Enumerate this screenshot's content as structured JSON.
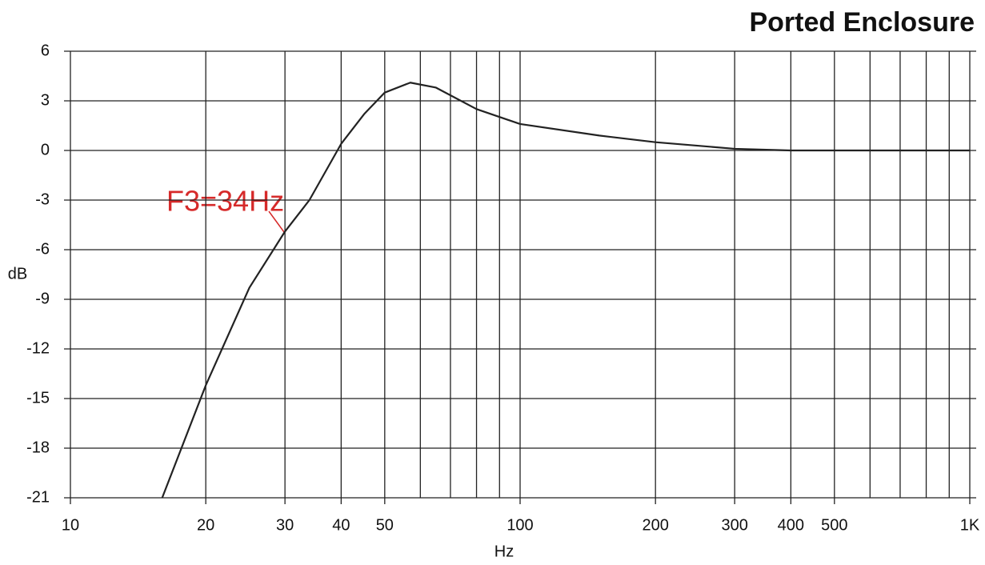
{
  "chart_data": {
    "type": "line",
    "title": "Ported Enclosure",
    "x_label": "Hz",
    "y_label": "dB",
    "x_scale": "log",
    "xlim": [
      10,
      1000
    ],
    "ylim": [
      -21,
      6
    ],
    "xticks": [
      10,
      20,
      30,
      40,
      50,
      100,
      200,
      300,
      400,
      500,
      {
        "value": 1000,
        "label": "1K"
      }
    ],
    "x_minor_ticks": [
      60,
      70,
      80,
      90,
      600,
      700,
      800,
      900
    ],
    "yticks": [
      -21,
      -18,
      -15,
      -12,
      -9,
      -6,
      -3,
      0,
      3,
      6
    ],
    "grid": true,
    "annotation": "F3=34Hz",
    "annotation_color": "#d62a2a",
    "series": [
      {
        "name": "Response",
        "color": "#222222",
        "x": [
          16,
          20,
          25,
          30,
          34,
          40,
          45,
          50,
          57,
          65,
          80,
          100,
          150,
          200,
          300,
          400,
          1000
        ],
        "values": [
          -21,
          -14.2,
          -8.3,
          -4.9,
          -3,
          0.4,
          2.2,
          3.5,
          4.1,
          3.8,
          2.5,
          1.6,
          0.9,
          0.5,
          0.1,
          0,
          0
        ]
      }
    ]
  }
}
